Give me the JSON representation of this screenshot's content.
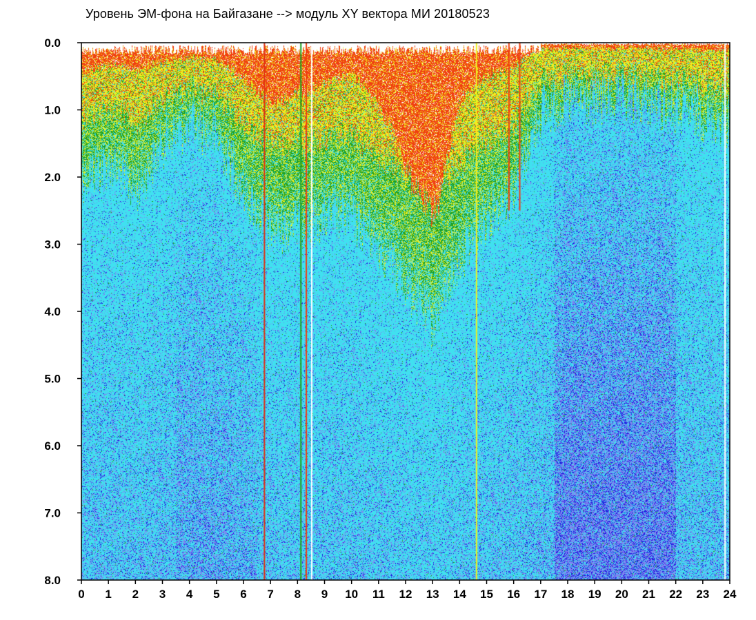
{
  "chart_data": {
    "type": "heatmap",
    "title": "Уровень ЭМ-фона на Байгазане   -->  модуль XY вектора МИ   20180523",
    "x_range": [
      0,
      24
    ],
    "y_range": [
      0.0,
      8.0
    ],
    "y_inverted": true,
    "x_ticks": [
      "0",
      "1",
      "2",
      "3",
      "4",
      "5",
      "6",
      "7",
      "8",
      "9",
      "10",
      "11",
      "12",
      "13",
      "14",
      "15",
      "16",
      "17",
      "18",
      "19",
      "20",
      "21",
      "22",
      "23",
      "24"
    ],
    "y_ticks": [
      "0.0",
      "1.0",
      "2.0",
      "3.0",
      "4.0",
      "5.0",
      "6.0",
      "7.0",
      "8.0"
    ],
    "grid": false,
    "color_scale": [
      "#2020e0",
      "#8080f0",
      "#40e0f0",
      "#20a020",
      "#f0f020",
      "#f04010",
      "#ffffff"
    ],
    "activity_profile": {
      "hours": [
        0,
        1,
        2,
        3,
        4,
        5,
        6,
        7,
        8,
        9,
        10,
        11,
        12,
        13,
        14,
        15,
        16,
        17,
        18,
        19,
        20,
        21,
        22,
        23,
        24
      ],
      "intensity_depth": [
        2.0,
        1.8,
        2.2,
        1.5,
        1.2,
        1.4,
        2.2,
        2.8,
        2.7,
        2.6,
        2.6,
        3.0,
        3.6,
        4.2,
        3.2,
        2.6,
        2.2,
        1.0,
        0.9,
        0.9,
        0.9,
        0.9,
        1.0,
        1.1,
        1.2
      ],
      "red_band_top": [
        0.4,
        0.3,
        0.3,
        0.3,
        0.3,
        0.3,
        0.5,
        0.8,
        0.6,
        0.5,
        0.3,
        0.7,
        1.4,
        2.0,
        0.6,
        0.3,
        0.2,
        0.0,
        0.0,
        0.0,
        0.0,
        0.0,
        0.0,
        0.0,
        0.0
      ]
    },
    "vertical_streaks": [
      {
        "hour": 6.75,
        "color": "#e03010",
        "depth": 8.0
      },
      {
        "hour": 8.1,
        "color": "#20a020",
        "depth": 8.0
      },
      {
        "hour": 8.3,
        "color": "#f04010",
        "depth": 8.0
      },
      {
        "hour": 8.5,
        "color": "#ffffff",
        "depth": 8.0
      },
      {
        "hour": 14.6,
        "color": "#f0f020",
        "depth": 8.0
      },
      {
        "hour": 15.8,
        "color": "#f04010",
        "depth": 2.5
      },
      {
        "hour": 16.2,
        "color": "#f04010",
        "depth": 2.5
      },
      {
        "hour": 23.8,
        "color": "#ffffff",
        "depth": 8.0
      }
    ]
  }
}
